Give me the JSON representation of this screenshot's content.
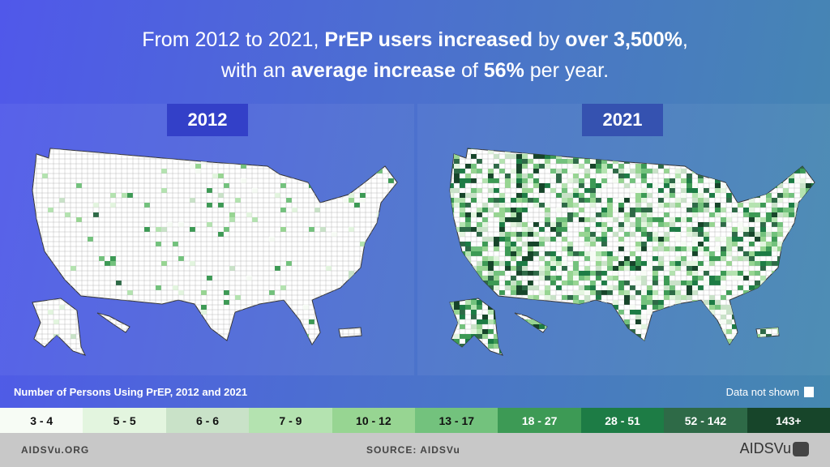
{
  "headline": {
    "line1": [
      {
        "t": "From 2012 to 2021, ",
        "b": false
      },
      {
        "t": "PrEP users increased",
        "b": true
      },
      {
        "t": " by ",
        "b": false
      },
      {
        "t": "over 3,500%",
        "b": true
      },
      {
        "t": ",",
        "b": false
      }
    ],
    "line2": [
      {
        "t": "with an ",
        "b": false
      },
      {
        "t": "average increase",
        "b": true
      },
      {
        "t": " of ",
        "b": false
      },
      {
        "t": "56%",
        "b": true
      },
      {
        "t": " per year.",
        "b": false
      }
    ]
  },
  "chart_data": {
    "type": "choropleth map",
    "title": "Number of Persons Using PrEP, 2012 and 2021",
    "panels": [
      {
        "label": "2012",
        "coverage": "sparse"
      },
      {
        "label": "2021",
        "coverage": "widespread"
      }
    ],
    "legend": [
      {
        "label": "3 - 4",
        "color": "#f7fcf5",
        "text": "#111"
      },
      {
        "label": "5 - 5",
        "color": "#e3f5df",
        "text": "#111"
      },
      {
        "label": "6 - 6",
        "color": "#c9e2c8",
        "text": "#111"
      },
      {
        "label": "7 - 9",
        "color": "#b4e3b0",
        "text": "#111"
      },
      {
        "label": "10 - 12",
        "color": "#97d592",
        "text": "#111"
      },
      {
        "label": "13 - 17",
        "color": "#73c27d",
        "text": "#111"
      },
      {
        "label": "18 - 27",
        "color": "#3d9a55",
        "text": "#fff"
      },
      {
        "label": "28 - 51",
        "color": "#1d7c45",
        "text": "#fff"
      },
      {
        "label": "52 - 142",
        "color": "#2e6a47",
        "text": "#fff"
      },
      {
        "label": "143+",
        "color": "#17452a",
        "text": "#fff"
      }
    ],
    "no_data": {
      "label": "Data not shown",
      "color": "#ffffff"
    }
  },
  "footer": {
    "left": "AIDSVu.ORG",
    "center": "SOURCE: AIDSVu",
    "logo": "AIDSVu"
  }
}
